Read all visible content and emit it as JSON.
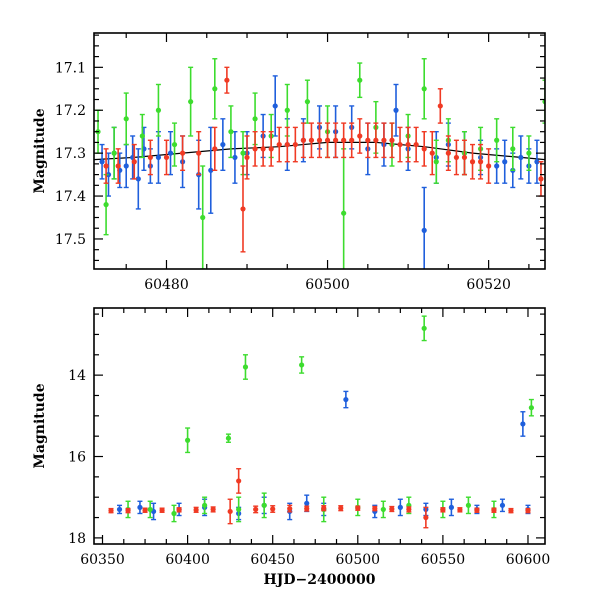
{
  "chart_data": [
    {
      "type": "scatter",
      "panel": "top",
      "title": "",
      "xlabel": "",
      "ylabel": "Magnitude",
      "xlim": [
        60471,
        60527
      ],
      "ylim": [
        17.57,
        17.02
      ],
      "y_inverted": true,
      "x_ticks": [
        60480,
        60500,
        60520
      ],
      "y_ticks": [
        17.1,
        17.2,
        17.3,
        17.4,
        17.5
      ],
      "grid": false,
      "legend": "none",
      "fit_curve": {
        "color": "#000000",
        "points": [
          [
            60471,
            17.315
          ],
          [
            60476,
            17.31
          ],
          [
            60482,
            17.3
          ],
          [
            60488,
            17.29
          ],
          [
            60494,
            17.285
          ],
          [
            60500,
            17.275
          ],
          [
            60506,
            17.275
          ],
          [
            60512,
            17.285
          ],
          [
            60518,
            17.3
          ],
          [
            60524,
            17.31
          ],
          [
            60527,
            17.315
          ]
        ]
      },
      "series": [
        {
          "color": "#1f5fdc",
          "points": [
            [
              60472,
              17.32,
              0.04
            ],
            [
              60472.8,
              17.35,
              0.05
            ],
            [
              60473.5,
              17.3,
              0.06
            ],
            [
              60474.2,
              17.34,
              0.04
            ],
            [
              60475,
              17.33,
              0.05
            ],
            [
              60475.8,
              17.31,
              0.05
            ],
            [
              60476.5,
              17.36,
              0.07
            ],
            [
              60477.2,
              17.29,
              0.05
            ],
            [
              60478,
              17.33,
              0.04
            ],
            [
              60479,
              17.31,
              0.06
            ],
            [
              60480.5,
              17.3,
              0.05
            ],
            [
              60482,
              17.32,
              0.06
            ],
            [
              60484,
              17.35,
              0.08
            ],
            [
              60485.5,
              17.34,
              0.1
            ],
            [
              60487,
              17.28,
              0.06
            ],
            [
              60488.5,
              17.31,
              0.06
            ],
            [
              60490,
              17.3,
              0.05
            ],
            [
              60492,
              17.26,
              0.05
            ],
            [
              60493.5,
              17.19,
              0.07
            ],
            [
              60495,
              17.28,
              0.06
            ],
            [
              60497,
              17.27,
              0.05
            ],
            [
              60499,
              17.24,
              0.05
            ],
            [
              60501,
              17.25,
              0.06
            ],
            [
              60503,
              17.24,
              0.05
            ],
            [
              60505,
              17.29,
              0.06
            ],
            [
              60507,
              17.28,
              0.05
            ],
            [
              60508.5,
              17.2,
              0.06
            ],
            [
              60510,
              17.29,
              0.05
            ],
            [
              60512,
              17.48,
              0.1
            ],
            [
              60513.5,
              17.31,
              0.06
            ],
            [
              60515,
              17.28,
              0.05
            ],
            [
              60517,
              17.3,
              0.05
            ],
            [
              60519,
              17.31,
              0.04
            ],
            [
              60521,
              17.33,
              0.04
            ],
            [
              60522,
              17.32,
              0.05
            ],
            [
              60523,
              17.34,
              0.04
            ],
            [
              60524,
              17.31,
              0.05
            ],
            [
              60525,
              17.33,
              0.04
            ],
            [
              60526,
              17.32,
              0.05
            ]
          ]
        },
        {
          "color": "#3ddc2e",
          "points": [
            [
              60471.5,
              17.25,
              0.05
            ],
            [
              60472.5,
              17.42,
              0.07
            ],
            [
              60473.5,
              17.3,
              0.06
            ],
            [
              60475,
              17.22,
              0.06
            ],
            [
              60477,
              17.26,
              0.05
            ],
            [
              60479,
              17.2,
              0.06
            ],
            [
              60481,
              17.28,
              0.05
            ],
            [
              60483,
              17.18,
              0.08
            ],
            [
              60484.5,
              17.45,
              0.12
            ],
            [
              60486,
              17.15,
              0.07
            ],
            [
              60488,
              17.25,
              0.06
            ],
            [
              60489.5,
              17.3,
              0.05
            ],
            [
              60491,
              17.22,
              0.06
            ],
            [
              60493,
              17.26,
              0.05
            ],
            [
              60495,
              17.2,
              0.06
            ],
            [
              60497.5,
              17.18,
              0.05
            ],
            [
              60500,
              17.25,
              0.06
            ],
            [
              60502,
              17.44,
              0.15
            ],
            [
              60504,
              17.13,
              0.04
            ],
            [
              60506,
              17.24,
              0.06
            ],
            [
              60508,
              17.28,
              0.05
            ],
            [
              60510,
              17.26,
              0.05
            ],
            [
              60512,
              17.15,
              0.07
            ],
            [
              60513.5,
              17.32,
              0.05
            ],
            [
              60515,
              17.27,
              0.05
            ],
            [
              60517,
              17.3,
              0.05
            ],
            [
              60519,
              17.29,
              0.05
            ],
            [
              60521,
              17.27,
              0.05
            ],
            [
              60523,
              17.29,
              0.05
            ],
            [
              60525,
              17.3,
              0.04
            ],
            [
              60527,
              17.18,
              0.05
            ]
          ]
        },
        {
          "color": "#f03a24",
          "points": [
            [
              60472.5,
              17.33,
              0.04
            ],
            [
              60474,
              17.33,
              0.04
            ],
            [
              60476,
              17.32,
              0.04
            ],
            [
              60478,
              17.31,
              0.04
            ],
            [
              60480,
              17.31,
              0.04
            ],
            [
              60482,
              17.3,
              0.04
            ],
            [
              60484,
              17.3,
              0.05
            ],
            [
              60486,
              17.29,
              0.05
            ],
            [
              60487.5,
              17.13,
              0.03
            ],
            [
              60489.5,
              17.43,
              0.1
            ],
            [
              60490,
              17.31,
              0.05
            ],
            [
              60491,
              17.29,
              0.04
            ],
            [
              60492,
              17.29,
              0.04
            ],
            [
              60493,
              17.29,
              0.04
            ],
            [
              60494,
              17.28,
              0.04
            ],
            [
              60495,
              17.28,
              0.04
            ],
            [
              60496,
              17.28,
              0.04
            ],
            [
              60497,
              17.27,
              0.04
            ],
            [
              60498,
              17.27,
              0.04
            ],
            [
              60499,
              17.27,
              0.04
            ],
            [
              60500,
              17.27,
              0.04
            ],
            [
              60501,
              17.27,
              0.04
            ],
            [
              60502,
              17.27,
              0.04
            ],
            [
              60503,
              17.27,
              0.04
            ],
            [
              60504,
              17.26,
              0.04
            ],
            [
              60505,
              17.27,
              0.04
            ],
            [
              60506,
              17.27,
              0.04
            ],
            [
              60507,
              17.27,
              0.04
            ],
            [
              60508,
              17.27,
              0.04
            ],
            [
              60509,
              17.28,
              0.04
            ],
            [
              60510,
              17.28,
              0.04
            ],
            [
              60511,
              17.28,
              0.04
            ],
            [
              60512,
              17.29,
              0.04
            ],
            [
              60513,
              17.3,
              0.05
            ],
            [
              60514,
              17.19,
              0.04
            ],
            [
              60515,
              17.3,
              0.04
            ],
            [
              60516,
              17.31,
              0.04
            ],
            [
              60517,
              17.31,
              0.04
            ],
            [
              60518,
              17.32,
              0.04
            ],
            [
              60519,
              17.32,
              0.04
            ],
            [
              60520,
              17.33,
              0.04
            ],
            [
              60526.5,
              17.36,
              0.04
            ]
          ]
        }
      ]
    },
    {
      "type": "scatter",
      "panel": "bottom",
      "title": "",
      "xlabel": "HJD−2400000",
      "ylabel": "Magnitude",
      "xlim": [
        60345,
        60610
      ],
      "ylim": [
        18.15,
        12.35
      ],
      "y_inverted": true,
      "x_ticks": [
        60350,
        60400,
        60450,
        60500,
        60550,
        60600
      ],
      "y_ticks": [
        14,
        16,
        18
      ],
      "grid": false,
      "legend": "none",
      "series": [
        {
          "color": "#1f5fdc",
          "points": [
            [
              60360,
              17.3,
              0.1
            ],
            [
              60372,
              17.25,
              0.15
            ],
            [
              60380,
              17.35,
              0.2
            ],
            [
              60395,
              17.3,
              0.15
            ],
            [
              60410,
              17.25,
              0.2
            ],
            [
              60430,
              17.4,
              0.15
            ],
            [
              60445,
              17.2,
              0.2
            ],
            [
              60460,
              17.35,
              0.2
            ],
            [
              60470,
              17.15,
              0.2
            ],
            [
              60480,
              17.3,
              0.15
            ],
            [
              60493,
              14.6,
              0.2
            ],
            [
              60510,
              17.35,
              0.15
            ],
            [
              60525,
              17.25,
              0.2
            ],
            [
              60540,
              17.3,
              0.15
            ],
            [
              60555,
              17.25,
              0.2
            ],
            [
              60570,
              17.3,
              0.1
            ],
            [
              60585,
              17.2,
              0.15
            ],
            [
              60597,
              15.2,
              0.3
            ],
            [
              60600,
              17.3,
              0.1
            ]
          ]
        },
        {
          "color": "#3ddc2e",
          "points": [
            [
              60365,
              17.3,
              0.2
            ],
            [
              60378,
              17.3,
              0.2
            ],
            [
              60392,
              17.4,
              0.2
            ],
            [
              60400,
              15.6,
              0.3
            ],
            [
              60410,
              17.2,
              0.2
            ],
            [
              60424,
              15.55,
              0.1
            ],
            [
              60430,
              17.3,
              0.3
            ],
            [
              60434,
              13.8,
              0.3
            ],
            [
              60445,
              17.2,
              0.3
            ],
            [
              60467,
              13.75,
              0.2
            ],
            [
              60480,
              17.3,
              0.3
            ],
            [
              60500,
              17.25,
              0.2
            ],
            [
              60515,
              17.3,
              0.2
            ],
            [
              60530,
              17.2,
              0.2
            ],
            [
              60539,
              12.85,
              0.3
            ],
            [
              60550,
              17.3,
              0.2
            ],
            [
              60565,
              17.2,
              0.2
            ],
            [
              60580,
              17.3,
              0.2
            ],
            [
              60602,
              14.8,
              0.2
            ]
          ]
        },
        {
          "color": "#f03a24",
          "points": [
            [
              60355,
              17.33,
              0.05
            ],
            [
              60365,
              17.33,
              0.05
            ],
            [
              60375,
              17.32,
              0.05
            ],
            [
              60385,
              17.32,
              0.05
            ],
            [
              60395,
              17.31,
              0.05
            ],
            [
              60405,
              17.31,
              0.06
            ],
            [
              60415,
              17.3,
              0.06
            ],
            [
              60425,
              17.35,
              0.3
            ],
            [
              60430,
              16.6,
              0.3
            ],
            [
              60440,
              17.3,
              0.08
            ],
            [
              60450,
              17.29,
              0.08
            ],
            [
              60460,
              17.28,
              0.08
            ],
            [
              60470,
              17.28,
              0.06
            ],
            [
              60480,
              17.27,
              0.06
            ],
            [
              60490,
              17.27,
              0.06
            ],
            [
              60500,
              17.27,
              0.05
            ],
            [
              60510,
              17.28,
              0.05
            ],
            [
              60520,
              17.29,
              0.06
            ],
            [
              60530,
              17.3,
              0.06
            ],
            [
              60540,
              17.5,
              0.25
            ],
            [
              60550,
              17.31,
              0.05
            ],
            [
              60560,
              17.31,
              0.05
            ],
            [
              60570,
              17.32,
              0.05
            ],
            [
              60580,
              17.32,
              0.05
            ],
            [
              60590,
              17.33,
              0.05
            ],
            [
              60600,
              17.33,
              0.05
            ]
          ]
        }
      ]
    }
  ]
}
